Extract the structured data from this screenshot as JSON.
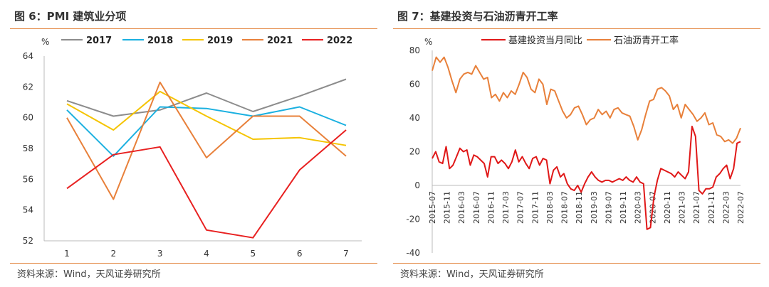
{
  "left_panel": {
    "title": "图 6：PMI 建筑业分项",
    "source": "资料来源：Wind，天风证券研究所"
  },
  "right_panel": {
    "title": "图 7：基建投资与石油沥青开工率",
    "source": "资料来源：Wind，天风证券研究所"
  },
  "chart_data": [
    {
      "type": "line",
      "ylabel": "%",
      "ylim": [
        52,
        64
      ],
      "yticks": [
        52,
        54,
        56,
        58,
        60,
        62,
        64
      ],
      "grid": false,
      "legend": "top",
      "categories": [
        "1",
        "2",
        "3",
        "4",
        "5",
        "6",
        "7"
      ],
      "series": [
        {
          "name": "2017",
          "color": "#8c8c8c",
          "values": [
            61.1,
            60.1,
            60.5,
            61.6,
            60.4,
            61.4,
            62.5
          ]
        },
        {
          "name": "2018",
          "color": "#1ab0e0",
          "values": [
            60.5,
            57.5,
            60.7,
            60.6,
            60.1,
            60.7,
            59.5
          ]
        },
        {
          "name": "2019",
          "color": "#f5c400",
          "values": [
            60.9,
            59.2,
            61.7,
            60.1,
            58.6,
            58.7,
            58.2
          ]
        },
        {
          "name": "2021",
          "color": "#e8803a",
          "values": [
            60.0,
            54.7,
            62.3,
            57.4,
            60.1,
            60.1,
            57.5
          ]
        },
        {
          "name": "2022",
          "color": "#e82020",
          "values": [
            55.4,
            57.6,
            58.1,
            52.7,
            52.2,
            56.6,
            59.2
          ]
        }
      ]
    },
    {
      "type": "line",
      "ylabel": "%",
      "ylim": [
        -40,
        80
      ],
      "yticks": [
        -40,
        -20,
        0,
        20,
        40,
        60,
        80
      ],
      "grid": false,
      "legend": "top",
      "x_tick_labels": [
        "2015-07",
        "2015-11",
        "2016-03",
        "2016-07",
        "2016-11",
        "2017-03",
        "2017-07",
        "2017-11",
        "2018-03",
        "2018-07",
        "2018-11",
        "2019-03",
        "2019-07",
        "2019-11",
        "2020-03",
        "2020-07",
        "2020-11",
        "2021-03",
        "2021-07",
        "2021-11",
        "2022-03",
        "2022-07"
      ],
      "x_start": "2015-07",
      "x_end": "2022-07",
      "series": [
        {
          "name": "基建投资当月同比",
          "color": "#e01818",
          "values": [
            16,
            20,
            14,
            13,
            23,
            10,
            12,
            17,
            22,
            20,
            21,
            12,
            18,
            17,
            15,
            13,
            5,
            17,
            17,
            13,
            15,
            13,
            10,
            14,
            21,
            14,
            17,
            13,
            10,
            16,
            17,
            12,
            16,
            15,
            1,
            9,
            11,
            5,
            7,
            1,
            -2,
            -3,
            0,
            -4,
            1,
            5,
            8,
            5,
            3,
            2,
            3,
            3,
            2,
            3,
            4,
            3,
            5,
            3,
            2,
            5,
            2,
            1,
            -26,
            -25,
            -7,
            3,
            10,
            9,
            8,
            7,
            5,
            8,
            6,
            4,
            8,
            35,
            29,
            -3,
            -5,
            -2,
            -2,
            -1,
            5,
            7,
            10,
            12,
            4,
            10,
            25,
            26
          ]
        },
        {
          "name": "石油沥青开工率",
          "color": "#e8803a",
          "values": [
            68,
            76,
            73,
            76,
            70,
            62,
            55,
            63,
            66,
            67,
            66,
            71,
            67,
            63,
            64,
            52,
            54,
            50,
            55,
            52,
            56,
            54,
            60,
            67,
            64,
            57,
            55,
            63,
            60,
            48,
            57,
            56,
            50,
            44,
            40,
            42,
            46,
            47,
            42,
            36,
            39,
            40,
            45,
            42,
            44,
            40,
            45,
            46,
            43,
            42,
            41,
            35,
            27,
            33,
            42,
            50,
            51,
            57,
            58,
            56,
            53,
            45,
            48,
            40,
            48,
            45,
            42,
            38,
            40,
            43,
            36,
            37,
            30,
            29,
            26,
            27,
            25,
            28,
            34
          ]
        }
      ]
    }
  ]
}
